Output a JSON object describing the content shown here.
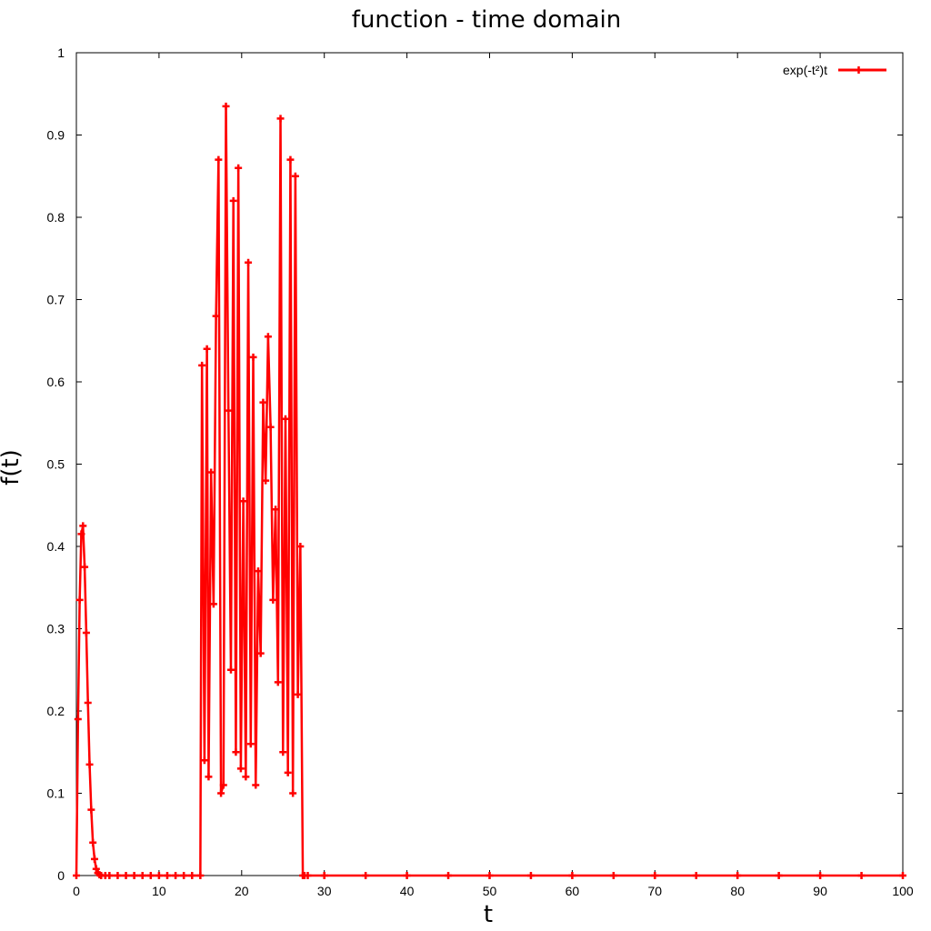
{
  "chart_data": {
    "type": "line",
    "title": "function - time domain",
    "xlabel": "t",
    "ylabel": "f(t)",
    "xlim": [
      0,
      100
    ],
    "ylim": [
      0,
      1
    ],
    "x_ticks": [
      0,
      10,
      20,
      30,
      40,
      50,
      60,
      70,
      80,
      90,
      100
    ],
    "y_ticks": [
      0,
      0.1,
      0.2,
      0.3,
      0.4,
      0.5,
      0.6,
      0.7,
      0.8,
      0.9,
      1
    ],
    "y_tick_labels": [
      "0",
      "0.1",
      "0.2",
      "0.3",
      "0.4",
      "0.5",
      "0.6",
      "0.7",
      "0.8",
      "0.9",
      "1"
    ],
    "grid": false,
    "legend_position": "top-right",
    "series": [
      {
        "name": "exp(-t²)t",
        "color": "#ff0000",
        "marker": "plus",
        "x": [
          0.0,
          0.2,
          0.4,
          0.6,
          0.8,
          1.0,
          1.2,
          1.4,
          1.6,
          1.8,
          2.0,
          2.2,
          2.4,
          2.6,
          2.8,
          3.0,
          3.5,
          4.0,
          5.0,
          6.0,
          7.0,
          8.0,
          9.0,
          10.0,
          11.0,
          12.0,
          13.0,
          14.0,
          15.0,
          15.2,
          15.5,
          15.8,
          16.0,
          16.3,
          16.6,
          16.9,
          17.2,
          17.5,
          17.8,
          18.1,
          18.4,
          18.7,
          19.0,
          19.3,
          19.6,
          19.9,
          20.2,
          20.5,
          20.8,
          21.1,
          21.4,
          21.7,
          22.0,
          22.3,
          22.6,
          22.9,
          23.2,
          23.5,
          23.8,
          24.1,
          24.4,
          24.7,
          25.0,
          25.3,
          25.6,
          25.9,
          26.2,
          26.5,
          26.8,
          27.1,
          27.4,
          27.6,
          28.0,
          30.0,
          35.0,
          40.0,
          45.0,
          50.0,
          55.0,
          60.0,
          65.0,
          70.0,
          75.0,
          80.0,
          85.0,
          90.0,
          95.0,
          100.0
        ],
        "values": [
          0.0,
          0.19,
          0.335,
          0.415,
          0.425,
          0.375,
          0.295,
          0.21,
          0.135,
          0.08,
          0.04,
          0.02,
          0.008,
          0.003,
          0.001,
          0.0,
          0.0,
          0.0,
          0.0,
          0.0,
          0.0,
          0.0,
          0.0,
          0.0,
          0.0,
          0.0,
          0.0,
          0.0,
          0.0,
          0.62,
          0.14,
          0.64,
          0.12,
          0.49,
          0.33,
          0.68,
          0.87,
          0.1,
          0.11,
          0.935,
          0.565,
          0.25,
          0.82,
          0.15,
          0.86,
          0.13,
          0.455,
          0.12,
          0.745,
          0.16,
          0.63,
          0.11,
          0.37,
          0.27,
          0.575,
          0.48,
          0.655,
          0.545,
          0.335,
          0.445,
          0.235,
          0.92,
          0.15,
          0.555,
          0.125,
          0.87,
          0.1,
          0.85,
          0.22,
          0.4,
          0.0,
          0.0,
          0.0,
          0.0,
          0.0,
          0.0,
          0.0,
          0.0,
          0.0,
          0.0,
          0.0,
          0.0,
          0.0,
          0.0,
          0.0,
          0.0,
          0.0,
          0.0
        ]
      }
    ]
  }
}
